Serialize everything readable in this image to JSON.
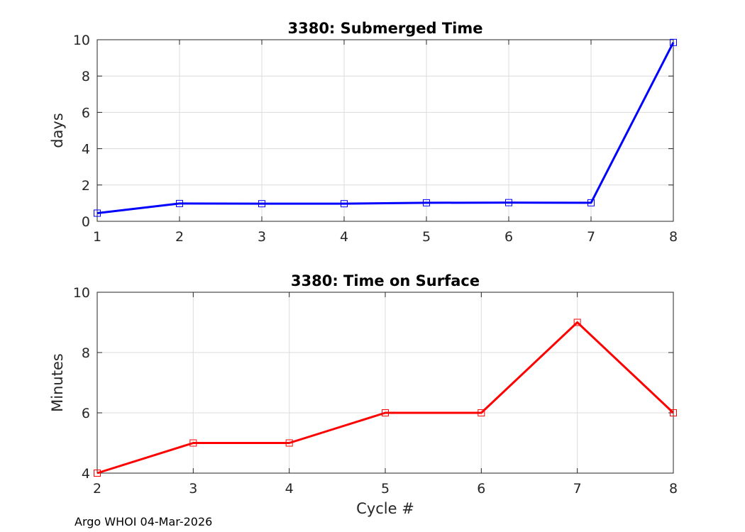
{
  "chart_data": [
    {
      "type": "line",
      "title": "3380: Submerged Time",
      "xlabel": "",
      "ylabel": "days",
      "x": [
        1,
        2,
        3,
        4,
        5,
        6,
        7,
        8
      ],
      "values": [
        0.45,
        0.98,
        0.97,
        0.97,
        1.02,
        1.03,
        1.02,
        9.85
      ],
      "xlim": [
        1,
        8
      ],
      "ylim": [
        0,
        10
      ],
      "xticks": [
        1,
        2,
        3,
        4,
        5,
        6,
        7,
        8
      ],
      "yticks": [
        0,
        2,
        4,
        6,
        8,
        10
      ],
      "grid": true,
      "color": "#0000ff",
      "marker": "square"
    },
    {
      "type": "line",
      "title": "3380: Time on Surface",
      "xlabel": "Cycle #",
      "ylabel": "Minutes",
      "x": [
        2,
        3,
        4,
        5,
        6,
        7,
        8
      ],
      "values": [
        4,
        5,
        5,
        6,
        6,
        9,
        6
      ],
      "xlim": [
        2,
        8
      ],
      "ylim": [
        4,
        10
      ],
      "xticks": [
        2,
        3,
        4,
        5,
        6,
        7,
        8
      ],
      "yticks": [
        4,
        6,
        8,
        10
      ],
      "grid": true,
      "color": "#ff0000",
      "marker": "square"
    }
  ],
  "footer": "Argo WHOI 04-Mar-2026"
}
